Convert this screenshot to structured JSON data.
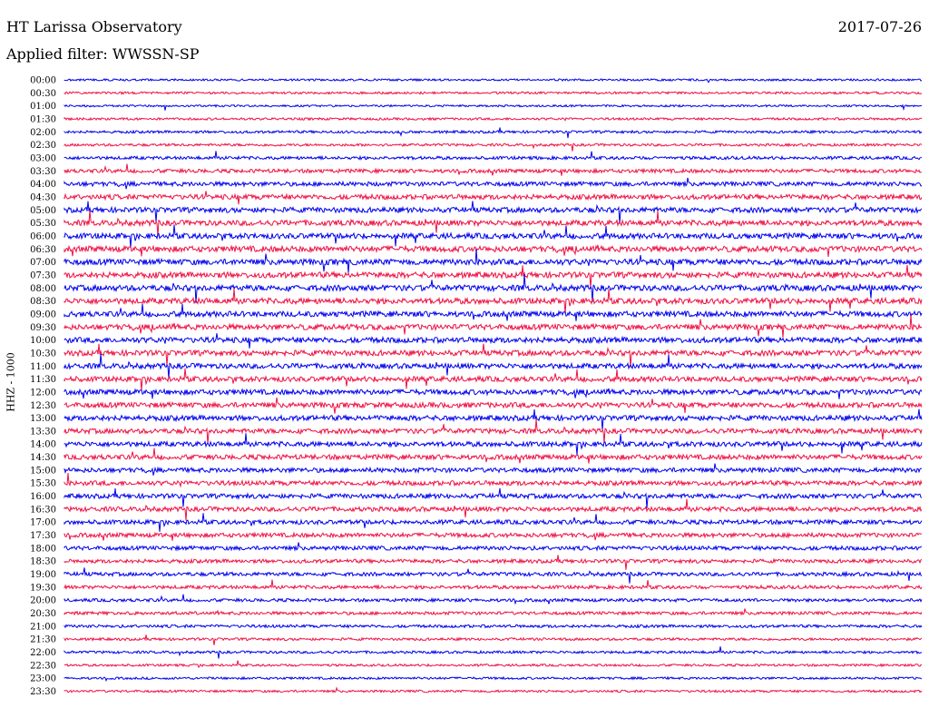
{
  "header": {
    "station": "HT Larissa Observatory",
    "date": "2017-07-26",
    "filter": "Applied filter: WWSSN-SP"
  },
  "channel": "HHZ - 1000",
  "colors": {
    "odd_row": "#0000ee",
    "even_row": "#ee1144",
    "background": "#ffffff"
  },
  "rows": [
    {
      "label": "00:00",
      "color": "blue",
      "activity": 0.15
    },
    {
      "label": "00:30",
      "color": "red",
      "activity": 0.2
    },
    {
      "label": "01:00",
      "color": "blue",
      "activity": 0.15
    },
    {
      "label": "01:30",
      "color": "red",
      "activity": 0.2
    },
    {
      "label": "02:00",
      "color": "blue",
      "activity": 0.25
    },
    {
      "label": "02:30",
      "color": "red",
      "activity": 0.25
    },
    {
      "label": "03:00",
      "color": "blue",
      "activity": 0.35
    },
    {
      "label": "03:30",
      "color": "red",
      "activity": 0.45
    },
    {
      "label": "04:00",
      "color": "blue",
      "activity": 0.55
    },
    {
      "label": "04:30",
      "color": "red",
      "activity": 0.65
    },
    {
      "label": "05:00",
      "color": "blue",
      "activity": 0.7
    },
    {
      "label": "05:30",
      "color": "red",
      "activity": 0.75
    },
    {
      "label": "06:00",
      "color": "blue",
      "activity": 0.75
    },
    {
      "label": "06:30",
      "color": "red",
      "activity": 0.8
    },
    {
      "label": "07:00",
      "color": "blue",
      "activity": 0.8
    },
    {
      "label": "07:30",
      "color": "red",
      "activity": 0.8
    },
    {
      "label": "08:00",
      "color": "blue",
      "activity": 0.8
    },
    {
      "label": "08:30",
      "color": "red",
      "activity": 0.8
    },
    {
      "label": "09:00",
      "color": "blue",
      "activity": 0.75
    },
    {
      "label": "09:30",
      "color": "red",
      "activity": 0.75
    },
    {
      "label": "10:00",
      "color": "blue",
      "activity": 0.75
    },
    {
      "label": "10:30",
      "color": "red",
      "activity": 0.75
    },
    {
      "label": "11:00",
      "color": "blue",
      "activity": 0.7
    },
    {
      "label": "11:30",
      "color": "red",
      "activity": 0.7
    },
    {
      "label": "12:00",
      "color": "blue",
      "activity": 0.7
    },
    {
      "label": "12:30",
      "color": "red",
      "activity": 0.7
    },
    {
      "label": "13:00",
      "color": "blue",
      "activity": 0.7
    },
    {
      "label": "13:30",
      "color": "red",
      "activity": 0.65
    },
    {
      "label": "14:00",
      "color": "blue",
      "activity": 0.65
    },
    {
      "label": "14:30",
      "color": "red",
      "activity": 0.65
    },
    {
      "label": "15:00",
      "color": "blue",
      "activity": 0.6
    },
    {
      "label": "15:30",
      "color": "red",
      "activity": 0.6
    },
    {
      "label": "16:00",
      "color": "blue",
      "activity": 0.6
    },
    {
      "label": "16:30",
      "color": "red",
      "activity": 0.6
    },
    {
      "label": "17:00",
      "color": "blue",
      "activity": 0.55
    },
    {
      "label": "17:30",
      "color": "red",
      "activity": 0.55
    },
    {
      "label": "18:00",
      "color": "blue",
      "activity": 0.5
    },
    {
      "label": "18:30",
      "color": "red",
      "activity": 0.45
    },
    {
      "label": "19:00",
      "color": "blue",
      "activity": 0.45
    },
    {
      "label": "19:30",
      "color": "red",
      "activity": 0.4
    },
    {
      "label": "20:00",
      "color": "blue",
      "activity": 0.35
    },
    {
      "label": "20:30",
      "color": "red",
      "activity": 0.35
    },
    {
      "label": "21:00",
      "color": "blue",
      "activity": 0.3
    },
    {
      "label": "21:30",
      "color": "red",
      "activity": 0.25
    },
    {
      "label": "22:00",
      "color": "blue",
      "activity": 0.25
    },
    {
      "label": "22:30",
      "color": "red",
      "activity": 0.2
    },
    {
      "label": "23:00",
      "color": "blue",
      "activity": 0.2
    },
    {
      "label": "23:30",
      "color": "red",
      "activity": 0.2
    }
  ]
}
